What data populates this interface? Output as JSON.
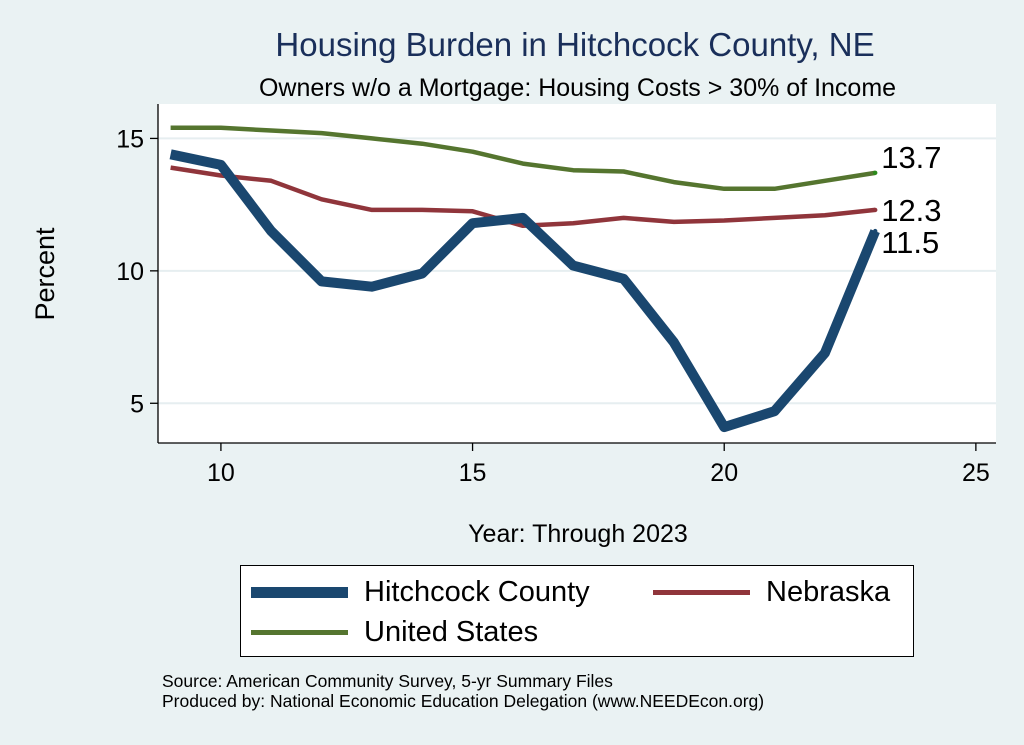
{
  "chart_data": {
    "type": "line",
    "title": "Housing Burden in Hitchcock County, NE",
    "subtitle": "Owners w/o a Mortgage: Housing Costs > 30% of Income",
    "xlabel": "Year: Through 2023",
    "ylabel": "Percent",
    "xlim": [
      8.75,
      25.4
    ],
    "ylim": [
      3.5,
      16.3
    ],
    "xticks": [
      10,
      15,
      20,
      25
    ],
    "yticks": [
      5,
      10,
      15
    ],
    "grid": true,
    "legend_position": "bottom",
    "series": [
      {
        "name": "Hitchcock County",
        "color": "#1a476f",
        "x": [
          9,
          10,
          11,
          12,
          13,
          14,
          15,
          16,
          17,
          18,
          19,
          20,
          21,
          22,
          23
        ],
        "values": [
          14.4,
          14.0,
          11.5,
          9.6,
          9.4,
          9.9,
          11.8,
          12.0,
          10.2,
          9.7,
          7.3,
          4.1,
          4.7,
          6.9,
          11.5
        ],
        "end_label": "11.5"
      },
      {
        "name": "Nebraska",
        "color": "#90353b",
        "x": [
          9,
          10,
          11,
          12,
          13,
          14,
          15,
          16,
          17,
          18,
          19,
          20,
          21,
          22,
          23
        ],
        "values": [
          13.9,
          13.6,
          13.4,
          12.7,
          12.3,
          12.3,
          12.25,
          11.7,
          11.8,
          12.0,
          11.85,
          11.9,
          12.0,
          12.1,
          12.3
        ],
        "end_label": "12.3"
      },
      {
        "name": "United States",
        "color": "#55752f",
        "x": [
          9,
          10,
          11,
          12,
          13,
          14,
          15,
          16,
          17,
          18,
          19,
          20,
          21,
          22,
          23
        ],
        "values": [
          15.4,
          15.4,
          15.3,
          15.2,
          15.0,
          14.8,
          14.5,
          14.05,
          13.8,
          13.75,
          13.35,
          13.1,
          13.1,
          13.4,
          13.7
        ],
        "end_label": "13.7"
      }
    ]
  },
  "legend": {
    "items": [
      {
        "label": "Hitchcock County",
        "color": "#1a476f"
      },
      {
        "label": "Nebraska",
        "color": "#90353b"
      },
      {
        "label": "United States",
        "color": "#55752f"
      }
    ]
  },
  "source": {
    "line1": "Source: American Community Survey, 5-yr Summary Files",
    "line2": "Produced by: National Economic Education Delegation (www.NEEDEcon.org)"
  }
}
